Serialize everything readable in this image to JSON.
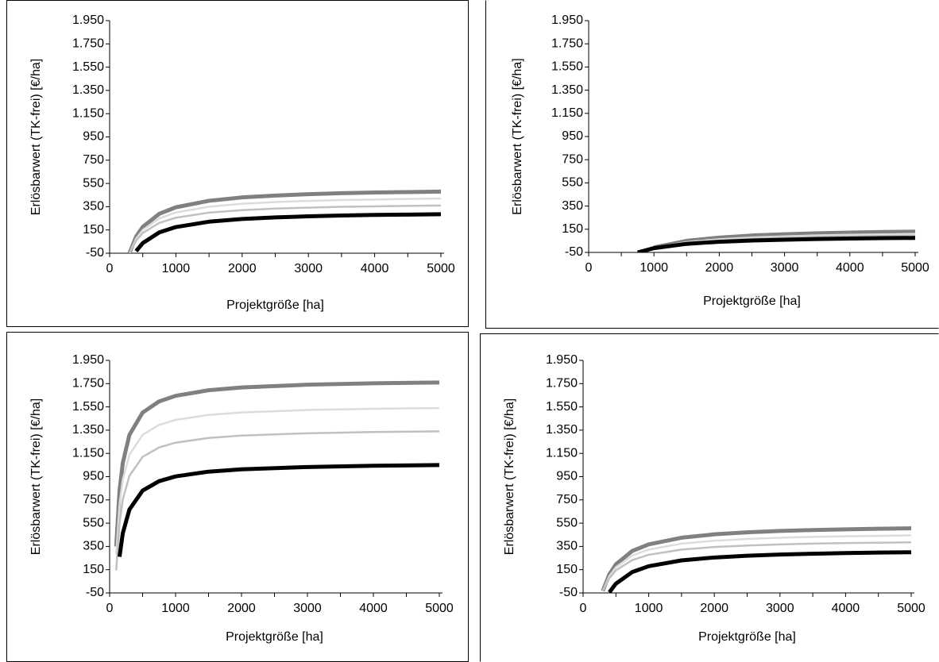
{
  "chart_data": [
    {
      "type": "line",
      "y_label": "Erlösbarwert (TK-frei) [€/ha]",
      "x_label": "Projektgröße [ha]",
      "x": [
        300,
        400,
        500,
        750,
        1000,
        1500,
        2000,
        2500,
        3000,
        3500,
        4000,
        4500,
        5000
      ],
      "series": [
        {
          "color": "#808080",
          "values": [
            -49,
            92,
            176,
            289,
            345,
            401,
            430,
            446,
            458,
            466,
            472,
            476,
            480
          ]
        },
        {
          "color": "#dcdcdc",
          "values": [
            -50,
            75,
            150,
            250,
            300,
            350,
            375,
            390,
            400,
            407,
            412,
            417,
            420
          ]
        },
        {
          "color": "#c0c0c0",
          "values": [
            -50,
            58,
            124,
            211,
            255,
            299,
            320,
            334,
            342,
            349,
            353,
            357,
            360
          ]
        },
        {
          "color": "#000000",
          "values": [
            null,
            -32,
            37,
            129,
            175,
            221,
            244,
            258,
            267,
            274,
            279,
            282,
            285
          ]
        }
      ],
      "xlim": [
        0,
        5000
      ],
      "xticks": [
        0,
        1000,
        2000,
        3000,
        4000,
        5000
      ],
      "ylim": [
        -50,
        1950
      ],
      "yticks": [
        -50,
        150,
        350,
        550,
        750,
        950,
        {
          "value": 1150,
          "label": "1.150"
        },
        {
          "value": 1350,
          "label": "1.350"
        },
        {
          "value": 1550,
          "label": "1.550"
        },
        {
          "value": 1750,
          "label": "1.750"
        },
        {
          "value": 1950,
          "label": "1.950"
        }
      ]
    },
    {
      "type": "line",
      "y_label": "Erlösbarwert (TK-frei) [€/ha]",
      "x_label": "Projektgröße [ha]",
      "x": [
        750,
        1000,
        1500,
        2000,
        2500,
        3000,
        3500,
        4000,
        4500,
        5000
      ],
      "series": [
        {
          "color": "#808080",
          "values": [
            null,
            -7,
            50,
            78,
            96,
            107,
            115,
            121,
            126,
            130
          ]
        },
        {
          "color": "#dcdcdc",
          "values": [
            null,
            -12,
            39,
            64,
            79,
            89,
            97,
            102,
            106,
            110
          ]
        },
        {
          "color": "#c0c0c0",
          "values": [
            null,
            -15,
            31,
            54,
            68,
            77,
            84,
            89,
            92,
            95
          ]
        },
        {
          "color": "#000000",
          "values": [
            -50,
            -13,
            24,
            42,
            53,
            60,
            66,
            70,
            73,
            75
          ]
        }
      ],
      "xlim": [
        0,
        5000
      ],
      "xticks": [
        0,
        1000,
        2000,
        3000,
        4000,
        5000
      ],
      "ylim": [
        -50,
        1950
      ],
      "yticks": [
        -50,
        150,
        350,
        550,
        750,
        950,
        {
          "value": 1150,
          "label": "1.150"
        },
        {
          "value": 1350,
          "label": "1.350"
        },
        {
          "value": 1550,
          "label": "1.550"
        },
        {
          "value": 1750,
          "label": "1.750"
        },
        {
          "value": 1950,
          "label": "1.950"
        }
      ]
    },
    {
      "type": "line",
      "y_label": "Erlösbarwert (TK-frei) [€/ha]",
      "x_label": "Projektgröße [ha]",
      "x": [
        100,
        150,
        200,
        300,
        500,
        750,
        1000,
        1500,
        2000,
        3000,
        4000,
        5000
      ],
      "series": [
        {
          "color": "#808080",
          "values": [
            349,
            829,
            1069,
            1309,
            1501,
            1597,
            1645,
            1693,
            1717,
            1741,
            1753,
            1760
          ]
        },
        {
          "color": "#dcdcdc",
          "values": [
            286,
            713,
            926,
            1139,
            1310,
            1395,
            1438,
            1481,
            1502,
            1523,
            1534,
            1540
          ]
        },
        {
          "color": "#c0c0c0",
          "values": [
            144,
            551,
            754,
            957,
            1120,
            1201,
            1242,
            1283,
            1303,
            1323,
            1334,
            1340
          ]
        },
        {
          "color": "#000000",
          "values": [
            null,
            261,
            464,
            667,
            830,
            911,
            952,
            993,
            1013,
            1033,
            1044,
            1050
          ]
        }
      ],
      "xlim": [
        0,
        5000
      ],
      "xticks": [
        0,
        1000,
        2000,
        3000,
        4000,
        5000
      ],
      "ylim": [
        -50,
        1950
      ],
      "yticks": [
        -50,
        150,
        350,
        550,
        750,
        950,
        {
          "value": 1150,
          "label": "1.150"
        },
        {
          "value": 1350,
          "label": "1.350"
        },
        {
          "value": 1550,
          "label": "1.550"
        },
        {
          "value": 1750,
          "label": "1.750"
        },
        {
          "value": 1950,
          "label": "1.950"
        }
      ]
    },
    {
      "type": "line",
      "y_label": "Erlösbarwert (TK-frei) [€/ha]",
      "x_label": "Projektgröße [ha]",
      "x": [
        300,
        400,
        500,
        750,
        1000,
        1500,
        2000,
        2500,
        3000,
        3500,
        4000,
        4500,
        5000
      ],
      "series": [
        {
          "color": "#808080",
          "values": [
            -33,
            110,
            196,
            311,
            368,
            425,
            454,
            471,
            483,
            491,
            497,
            502,
            506
          ]
        },
        {
          "color": "#dcdcdc",
          "values": [
            -32,
            95,
            171,
            272,
            323,
            374,
            399,
            414,
            424,
            432,
            437,
            441,
            445
          ]
        },
        {
          "color": "#c0c0c0",
          "values": [
            -35,
            77,
            144,
            233,
            278,
            323,
            345,
            358,
            367,
            374,
            379,
            382,
            385
          ]
        },
        {
          "color": "#000000",
          "values": [
            null,
            -45,
            30,
            130,
            180,
            230,
            255,
            270,
            280,
            287,
            293,
            297,
            300
          ]
        }
      ],
      "xlim": [
        0,
        5000
      ],
      "xticks": [
        0,
        1000,
        2000,
        3000,
        4000,
        5000
      ],
      "ylim": [
        -50,
        1950
      ],
      "yticks": [
        -50,
        150,
        350,
        550,
        750,
        950,
        {
          "value": 1150,
          "label": "1.150"
        },
        {
          "value": 1350,
          "label": "1.350"
        },
        {
          "value": 1550,
          "label": "1.550"
        },
        {
          "value": 1750,
          "label": "1.750"
        },
        {
          "value": 1950,
          "label": "1.950"
        }
      ]
    }
  ]
}
